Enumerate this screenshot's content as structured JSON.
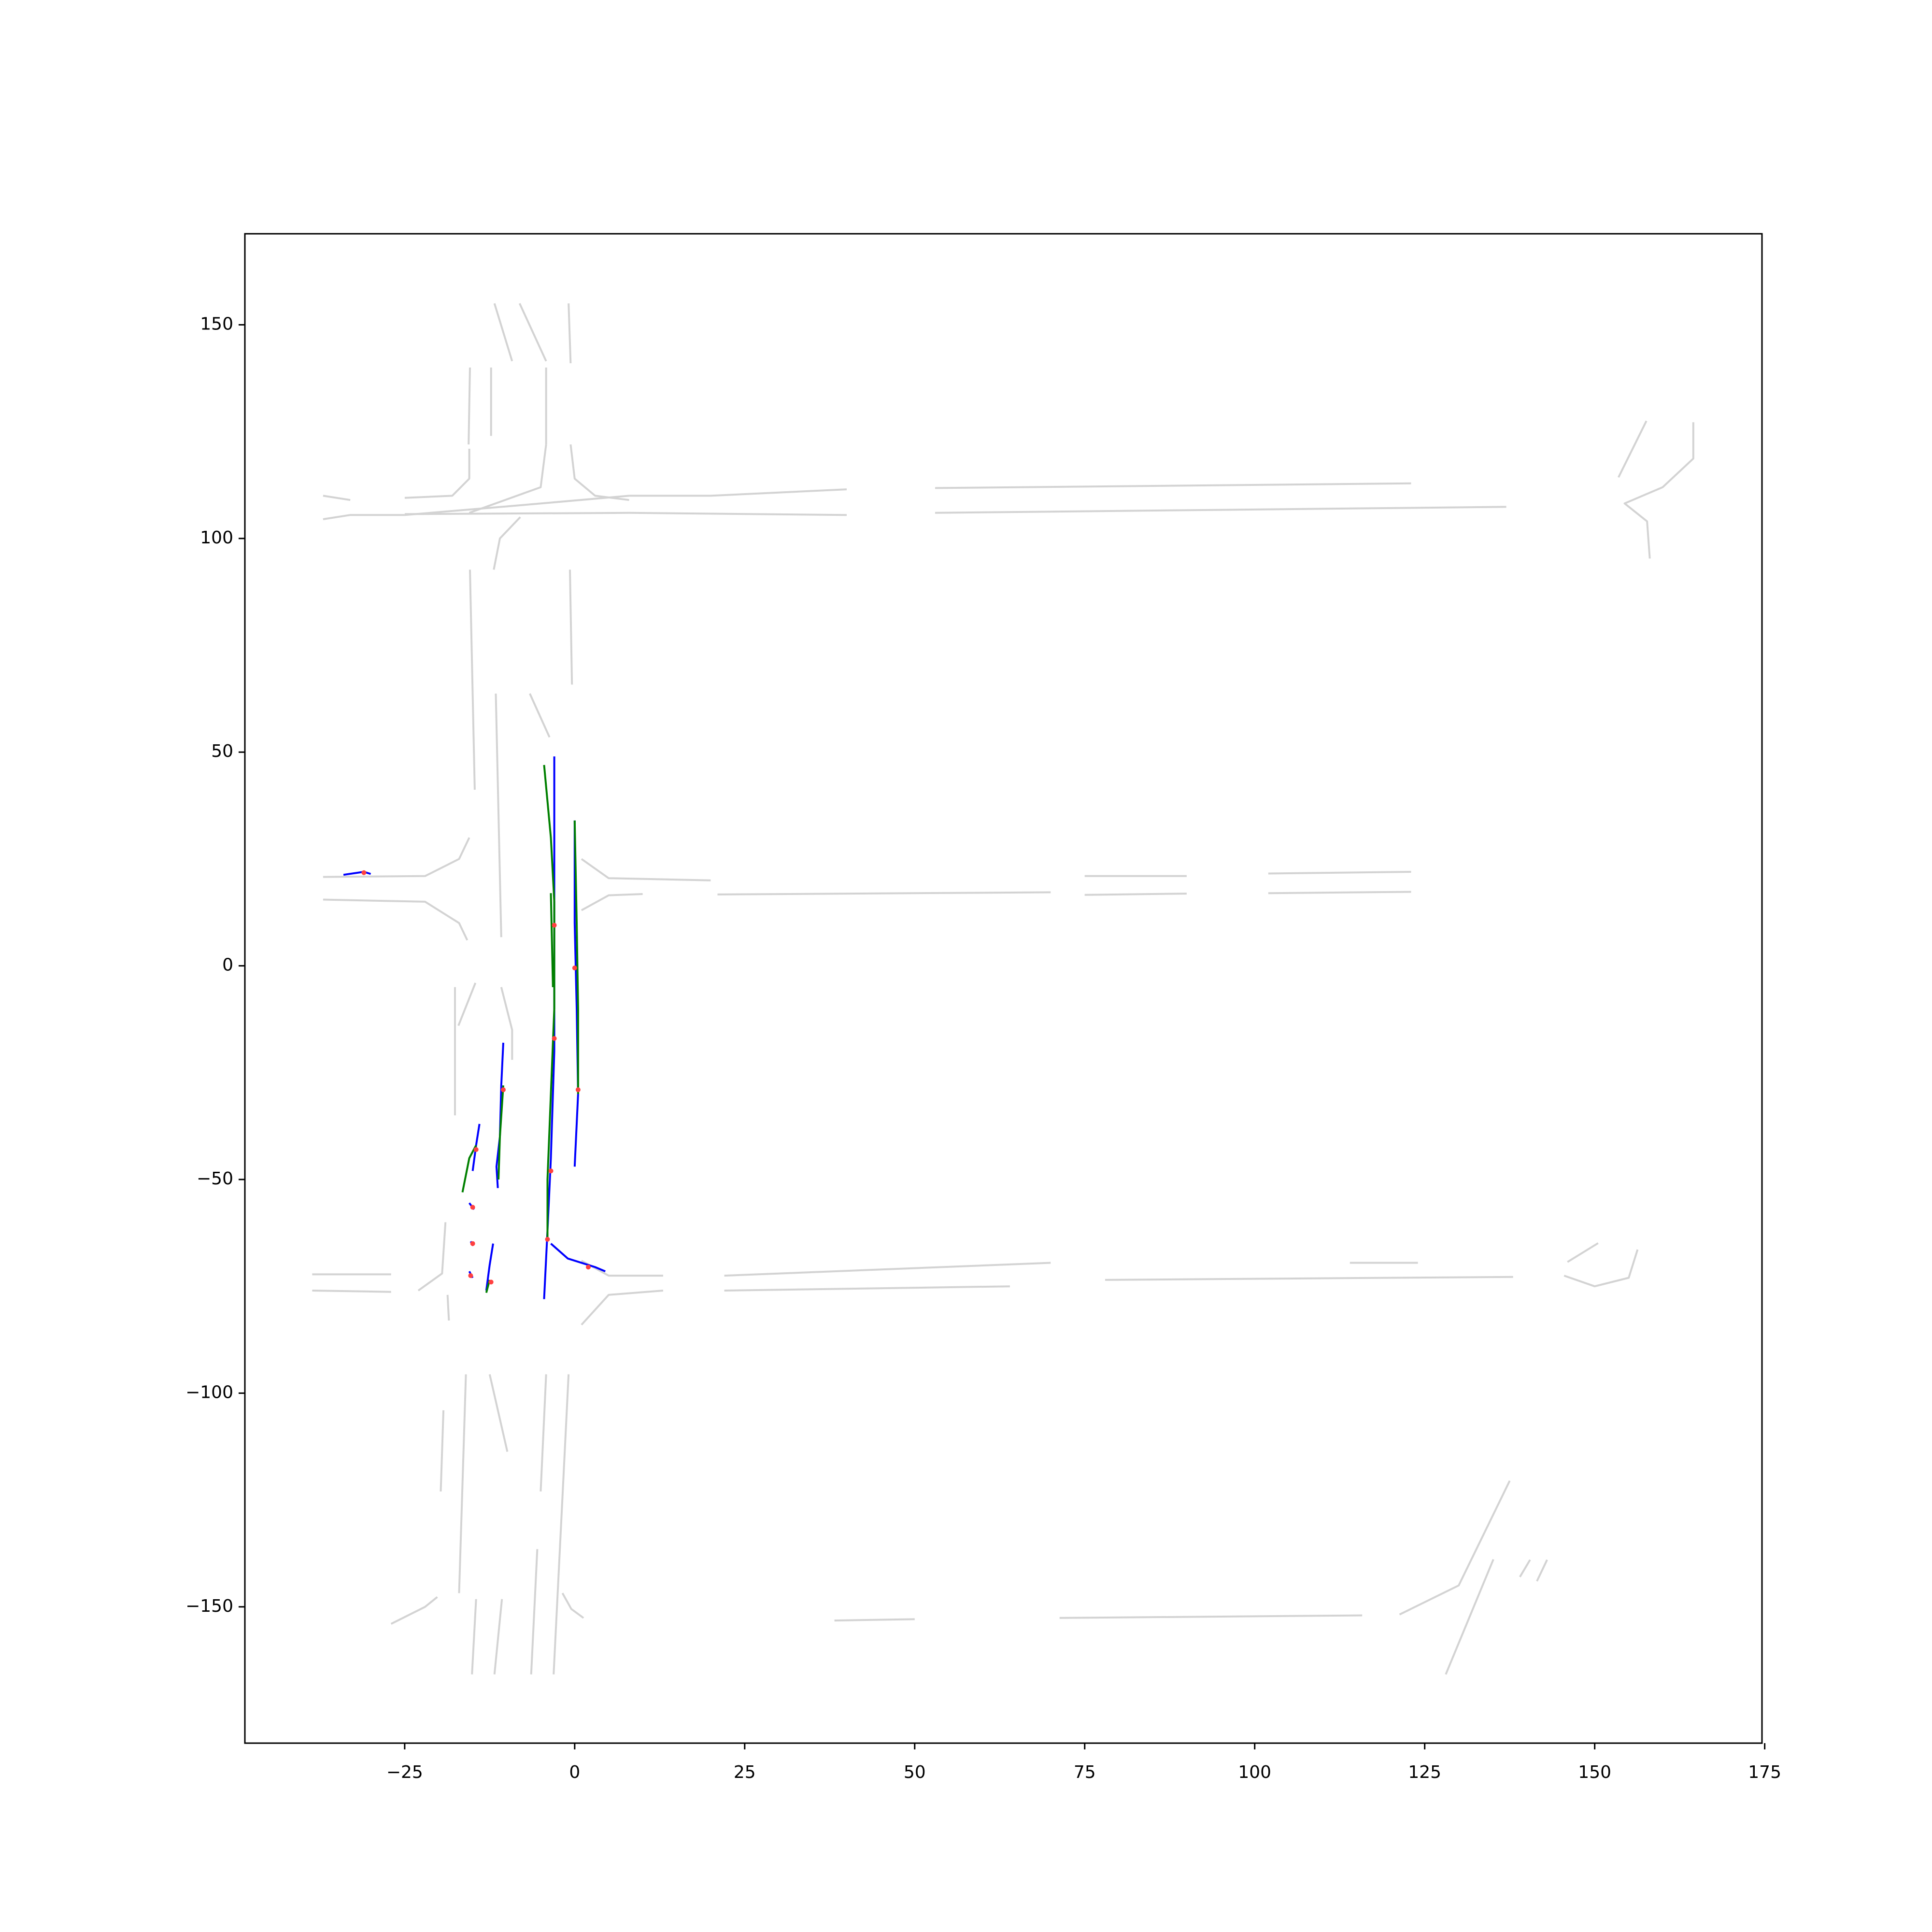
{
  "chart_data": {
    "type": "line",
    "xlim": [
      -48.5,
      174.6
    ],
    "ylim": [
      -181.9,
      171.3
    ],
    "xticks": [
      {
        "value": -25,
        "label": "−25"
      },
      0,
      25,
      50,
      75,
      100,
      125,
      150,
      175
    ],
    "yticks": [
      {
        "value": -150,
        "label": "−150"
      },
      {
        "value": -100,
        "label": "−100"
      },
      {
        "value": -50,
        "label": "−50"
      },
      0,
      50,
      100,
      150
    ],
    "series": [
      {
        "color": "#d3d3d3",
        "x": [
          -15.4,
          -15.6
        ],
        "values": [
          140,
          122
        ]
      },
      {
        "color": "#d3d3d3",
        "x": [
          -12.3,
          -12.3
        ],
        "values": [
          140,
          124
        ]
      },
      {
        "color": "#d3d3d3",
        "x": [
          -4.2,
          -4.2
        ],
        "values": [
          140,
          122
        ]
      },
      {
        "color": "#d3d3d3",
        "x": [
          -11.8,
          -9.2
        ],
        "values": [
          155,
          141.5
        ]
      },
      {
        "color": "#d3d3d3",
        "x": [
          -8.1,
          -4.2
        ],
        "values": [
          155,
          141.5
        ]
      },
      {
        "color": "#d3d3d3",
        "x": [
          -0.9,
          -0.6
        ],
        "values": [
          155,
          141
        ]
      },
      {
        "color": "#d3d3d3",
        "x": [
          -37,
          -33
        ],
        "values": [
          110,
          109
        ]
      },
      {
        "color": "#d3d3d3",
        "x": [
          -37,
          -33,
          -25
        ],
        "values": [
          104.5,
          105.5,
          105.5
        ]
      },
      {
        "color": "#d3d3d3",
        "x": [
          -25,
          -18,
          -15.5,
          -15.5
        ],
        "values": [
          109.5,
          110,
          114,
          121
        ]
      },
      {
        "color": "#d3d3d3",
        "x": [
          -25,
          8
        ],
        "values": [
          105.7,
          106
        ]
      },
      {
        "color": "#d3d3d3",
        "x": [
          -25,
          -10,
          8
        ],
        "values": [
          105.5,
          107.5,
          110
        ]
      },
      {
        "color": "#d3d3d3",
        "x": [
          -4.2,
          -5,
          -12,
          -15.5
        ],
        "values": [
          122,
          112,
          108,
          106
        ]
      },
      {
        "color": "#d3d3d3",
        "x": [
          -0.6,
          0,
          3,
          8
        ],
        "values": [
          122,
          114,
          110,
          109
        ]
      },
      {
        "color": "#d3d3d3",
        "x": [
          8,
          20,
          40
        ],
        "values": [
          110,
          110,
          111.5
        ]
      },
      {
        "color": "#d3d3d3",
        "x": [
          8,
          40
        ],
        "values": [
          106,
          105.5
        ]
      },
      {
        "color": "#d3d3d3",
        "x": [
          53,
          123
        ],
        "values": [
          111.8,
          112.9
        ]
      },
      {
        "color": "#d3d3d3",
        "x": [
          53,
          137
        ],
        "values": [
          106,
          107.4
        ]
      },
      {
        "color": "#d3d3d3",
        "x": [
          153.5,
          157.6
        ],
        "values": [
          114.3,
          127.5
        ]
      },
      {
        "color": "#d3d3d3",
        "x": [
          164.5,
          164.5,
          160,
          154.4,
          157.7,
          158.1
        ],
        "values": [
          127.2,
          118.7,
          112,
          108.2,
          104,
          95.3
        ]
      },
      {
        "color": "#d3d3d3",
        "x": [
          -15.4,
          -14.7
        ],
        "values": [
          92.7,
          41.2
        ]
      },
      {
        "color": "#d3d3d3",
        "x": [
          -11.9,
          -11,
          -8
        ],
        "values": [
          92.7,
          100,
          105
        ]
      },
      {
        "color": "#d3d3d3",
        "x": [
          -0.7,
          -0.4
        ],
        "values": [
          92.7,
          65.8
        ]
      },
      {
        "color": "#d3d3d3",
        "x": [
          -6.6,
          -3.7
        ],
        "values": [
          63.7,
          53.5
        ]
      },
      {
        "color": "#d3d3d3",
        "x": [
          -11.6,
          -10.8
        ],
        "values": [
          63.7,
          6.7
        ]
      },
      {
        "color": "#d3d3d3",
        "x": [
          -37,
          -22,
          -17,
          -15.5
        ],
        "values": [
          20.8,
          21,
          25,
          30
        ]
      },
      {
        "color": "#d3d3d3",
        "x": [
          -37,
          -22,
          -17,
          -15.8
        ],
        "values": [
          15.5,
          15,
          10,
          6
        ]
      },
      {
        "color": "#d3d3d3",
        "x": [
          1,
          5,
          20
        ],
        "values": [
          25,
          20.5,
          20
        ]
      },
      {
        "color": "#d3d3d3",
        "x": [
          1,
          5,
          10
        ],
        "values": [
          13,
          16.5,
          16.8
        ]
      },
      {
        "color": "#d3d3d3",
        "x": [
          21,
          70
        ],
        "values": [
          16.7,
          17.2
        ]
      },
      {
        "color": "#d3d3d3",
        "x": [
          75,
          90
        ],
        "values": [
          21,
          21
        ]
      },
      {
        "color": "#d3d3d3",
        "x": [
          75,
          90
        ],
        "values": [
          16.6,
          16.9
        ]
      },
      {
        "color": "#d3d3d3",
        "x": [
          102,
          123
        ],
        "values": [
          21.6,
          22
        ]
      },
      {
        "color": "#d3d3d3",
        "x": [
          102,
          123
        ],
        "values": [
          17,
          17.3
        ]
      },
      {
        "color": "#d3d3d3",
        "x": [
          -17.6,
          -17.6
        ],
        "values": [
          -5,
          -35
        ]
      },
      {
        "color": "#d3d3d3",
        "x": [
          -14.6,
          -17.1
        ],
        "values": [
          -4,
          -14
        ]
      },
      {
        "color": "#d3d3d3",
        "x": [
          -10.8,
          -9.2,
          -9.2
        ],
        "values": [
          -5,
          -15,
          -22
        ]
      },
      {
        "color": "#d3d3d3",
        "x": [
          -38.6,
          -27
        ],
        "values": [
          -72.2,
          -72.2
        ]
      },
      {
        "color": "#d3d3d3",
        "x": [
          -38.6,
          -27
        ],
        "values": [
          -76,
          -76.3
        ]
      },
      {
        "color": "#d3d3d3",
        "x": [
          -19,
          -19.5,
          -23
        ],
        "values": [
          -60,
          -72,
          -76
        ]
      },
      {
        "color": "#d3d3d3",
        "x": [
          -18.7,
          -18.5
        ],
        "values": [
          -77,
          -83
        ]
      },
      {
        "color": "#d3d3d3",
        "x": [
          1,
          5,
          13
        ],
        "values": [
          -69,
          -72.5,
          -72.5
        ]
      },
      {
        "color": "#d3d3d3",
        "x": [
          1,
          5,
          13
        ],
        "values": [
          -84,
          -77,
          -76
        ]
      },
      {
        "color": "#d3d3d3",
        "x": [
          22,
          70
        ],
        "values": [
          -72.5,
          -69.5
        ]
      },
      {
        "color": "#d3d3d3",
        "x": [
          22,
          64
        ],
        "values": [
          -76,
          -75
        ]
      },
      {
        "color": "#d3d3d3",
        "x": [
          78,
          138
        ],
        "values": [
          -73.5,
          -72.8
        ]
      },
      {
        "color": "#d3d3d3",
        "x": [
          114,
          124
        ],
        "values": [
          -69.5,
          -69.5
        ]
      },
      {
        "color": "#d3d3d3",
        "x": [
          146,
          150.5
        ],
        "values": [
          -69.3,
          -64.9
        ]
      },
      {
        "color": "#d3d3d3",
        "x": [
          156.3,
          155,
          150,
          145.5
        ],
        "values": [
          -66.4,
          -73,
          -75,
          -72.5
        ]
      },
      {
        "color": "#d3d3d3",
        "x": [
          -16,
          -17
        ],
        "values": [
          -95.6,
          -146.8
        ]
      },
      {
        "color": "#d3d3d3",
        "x": [
          -12.5,
          -9.9
        ],
        "values": [
          -95.6,
          -113.7
        ]
      },
      {
        "color": "#d3d3d3",
        "x": [
          -4.2,
          -5
        ],
        "values": [
          -95.6,
          -123
        ]
      },
      {
        "color": "#d3d3d3",
        "x": [
          -0.9,
          -3.1
        ],
        "values": [
          -95.6,
          -165.8
        ]
      },
      {
        "color": "#d3d3d3",
        "x": [
          -19.3,
          -19.7
        ],
        "values": [
          -104,
          -123
        ]
      },
      {
        "color": "#d3d3d3",
        "x": [
          -14.5,
          -15.1
        ],
        "values": [
          -148.2,
          -165.8
        ]
      },
      {
        "color": "#d3d3d3",
        "x": [
          -10.7,
          -11.8
        ],
        "values": [
          -148.2,
          -165.8
        ]
      },
      {
        "color": "#d3d3d3",
        "x": [
          -5.5,
          -6.4
        ],
        "values": [
          -136.5,
          -165.8
        ]
      },
      {
        "color": "#d3d3d3",
        "x": [
          -27,
          -22,
          -20.2
        ],
        "values": [
          -154,
          -150,
          -147.7
        ]
      },
      {
        "color": "#d3d3d3",
        "x": [
          -1.8,
          -0.5,
          1.3
        ],
        "values": [
          -146.8,
          -150.5,
          -152.6
        ]
      },
      {
        "color": "#d3d3d3",
        "x": [
          38.2,
          50
        ],
        "values": [
          -153.2,
          -152.9
        ]
      },
      {
        "color": "#d3d3d3",
        "x": [
          71.3,
          115.8
        ],
        "values": [
          -152.6,
          -152
        ]
      },
      {
        "color": "#d3d3d3",
        "x": [
          121.3,
          130,
          137.5
        ],
        "values": [
          -151.8,
          -145,
          -120.5
        ]
      },
      {
        "color": "#d3d3d3",
        "x": [
          128.1,
          135.1
        ],
        "values": [
          -165.8,
          -138.9
        ]
      },
      {
        "color": "#d3d3d3",
        "x": [
          139,
          140.5
        ],
        "values": [
          -143,
          -139
        ]
      },
      {
        "color": "#d3d3d3",
        "x": [
          141.5,
          143
        ],
        "values": [
          -144,
          -139
        ]
      },
      {
        "color": "#0000ff",
        "x": [
          -4.5,
          -4,
          -3.5,
          -3,
          -3,
          -3,
          -3,
          -3
        ],
        "values": [
          -78,
          -62,
          -45,
          -20,
          0,
          20,
          40,
          49
        ]
      },
      {
        "color": "#0000ff",
        "x": [
          0,
          0.5,
          0.3,
          0,
          0
        ],
        "values": [
          -47,
          -30,
          -10,
          10,
          34
        ]
      },
      {
        "color": "#0000ff",
        "x": [
          -3.5,
          -1,
          3,
          4.5
        ],
        "values": [
          -65,
          -68.5,
          -70.5,
          -71.5
        ]
      },
      {
        "color": "#0000ff",
        "x": [
          -10.5,
          -10.8,
          -11,
          -11.5,
          -11.3
        ],
        "values": [
          -18,
          -28,
          -40,
          -47,
          -52
        ]
      },
      {
        "color": "#0000ff",
        "x": [
          -14,
          -14.5,
          -15
        ],
        "values": [
          -37,
          -42,
          -48
        ]
      },
      {
        "color": "#0000ff",
        "x": [
          -12,
          -12.5,
          -13
        ],
        "values": [
          -65,
          -70,
          -76
        ]
      },
      {
        "color": "#0000ff",
        "x": [
          -15.5,
          -14.8
        ],
        "values": [
          -55.5,
          -57
        ]
      },
      {
        "color": "#0000ff",
        "x": [
          -15.3,
          -14.9
        ],
        "values": [
          -64.5,
          -65.5
        ]
      },
      {
        "color": "#0000ff",
        "x": [
          -15.5,
          -15
        ],
        "values": [
          -71.5,
          -73
        ]
      },
      {
        "color": "#0000ff",
        "x": [
          -34,
          -31,
          -30
        ],
        "values": [
          21.3,
          22,
          21.5
        ]
      },
      {
        "color": "#008000",
        "x": [
          -4.5,
          -3.5,
          -3,
          -3,
          -3.5,
          -4,
          -4
        ],
        "values": [
          47,
          30,
          15,
          -10,
          -30,
          -50,
          -64
        ]
      },
      {
        "color": "#008000",
        "x": [
          0,
          0.3,
          0.5,
          0.5
        ],
        "values": [
          34,
          10,
          -10,
          -30
        ]
      },
      {
        "color": "#008000",
        "x": [
          -3.5,
          -3.2
        ],
        "values": [
          17,
          -5
        ]
      },
      {
        "color": "#008000",
        "x": [
          -16.5,
          -15.5,
          -14.5
        ],
        "values": [
          -53,
          -45,
          -42
        ]
      },
      {
        "color": "#008000",
        "x": [
          -10.5,
          -11,
          -11.2
        ],
        "values": [
          -28,
          -40,
          -50
        ]
      },
      {
        "color": "#008000",
        "x": [
          -12.5,
          -13
        ],
        "values": [
          -73.5,
          -76.5
        ]
      },
      {
        "color": "#ff4040",
        "style": "points",
        "x": [
          -3,
          -3,
          -3.5,
          0,
          0.5,
          -10.5,
          -14.5,
          -15,
          -15,
          -15.3,
          -12.3,
          -4,
          2,
          -31
        ],
        "values": [
          9.5,
          -17,
          -48,
          -0.5,
          -29,
          -29,
          -43,
          -56.5,
          -65,
          -72.5,
          -74,
          -64,
          -70.5,
          21.8
        ]
      }
    ]
  }
}
